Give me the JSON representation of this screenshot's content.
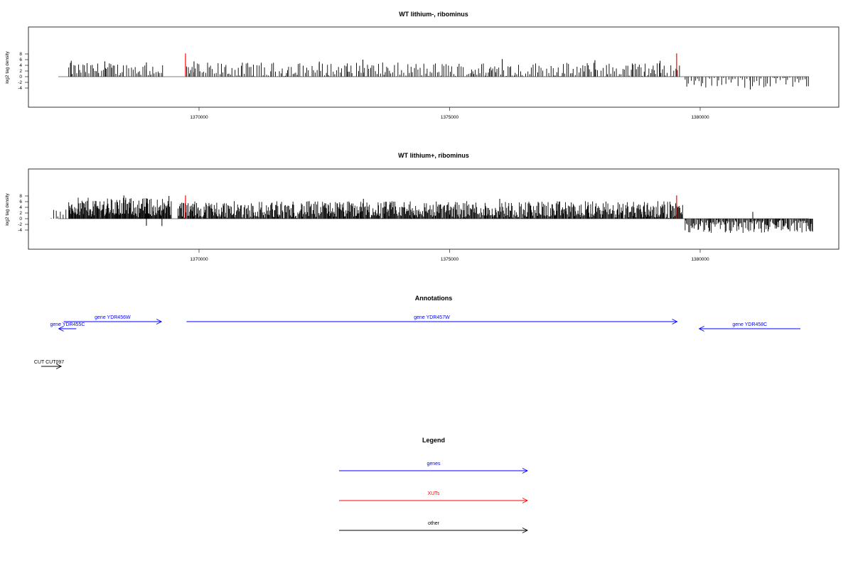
{
  "colors": {
    "genes": "#0000ff",
    "xuts": "#ff0000",
    "other": "#000000",
    "signal": "#000000"
  },
  "chart_data": [
    {
      "type": "bar",
      "title": "WT lithium-, ribominus",
      "ylabel": "log2 tag density",
      "xlim": [
        1366800,
        1382800
      ],
      "ylim": [
        -5,
        9
      ],
      "x_ticks": [
        1370000,
        1375000,
        1380000
      ],
      "y_ticks": [
        8,
        6,
        4,
        2,
        0,
        -2,
        -4
      ],
      "grid": false,
      "markers": [
        {
          "type": "XUT",
          "x": 1369730,
          "value": 8.2
        },
        {
          "type": "XUT",
          "x": 1379530,
          "value": 8.2
        }
      ],
      "segments": [
        {
          "from": 1367400,
          "to": 1369300,
          "mean": 2.5,
          "range": 2.4,
          "sign": 1,
          "step": 30
        },
        {
          "from": 1369750,
          "to": 1379600,
          "mean": 2.4,
          "range": 2.6,
          "sign": 1,
          "step": 32
        },
        {
          "from": 1379700,
          "to": 1382200,
          "mean": 2.2,
          "range": 1.8,
          "sign": -1,
          "step": 45
        }
      ],
      "peaks": [
        {
          "x": 1367450,
          "value": 5.6
        },
        {
          "x": 1368120,
          "value": 5.4
        },
        {
          "x": 1368950,
          "value": 5.0
        },
        {
          "x": 1369900,
          "value": 5.4
        },
        {
          "x": 1372400,
          "value": 5.3
        },
        {
          "x": 1373270,
          "value": 6.0
        },
        {
          "x": 1376050,
          "value": 6.2
        },
        {
          "x": 1377900,
          "value": 5.8
        },
        {
          "x": 1379200,
          "value": 5.6
        },
        {
          "x": 1381000,
          "value": -4.5
        }
      ]
    },
    {
      "type": "bar",
      "title": "WT lithium+, ribominus",
      "ylabel": "log2 tag density",
      "xlim": [
        1366800,
        1382800
      ],
      "ylim": [
        -5,
        9
      ],
      "x_ticks": [
        1370000,
        1375000,
        1380000
      ],
      "y_ticks": [
        8,
        6,
        4,
        2,
        0,
        -2,
        -4
      ],
      "grid": false,
      "markers": [
        {
          "type": "XUT",
          "x": 1369730,
          "value": 8.2
        },
        {
          "type": "XUT",
          "x": 1379530,
          "value": 8.2
        }
      ],
      "segments": [
        {
          "from": 1367050,
          "to": 1367350,
          "mean": 1.8,
          "range": 1.5,
          "sign": 1,
          "step": 40
        },
        {
          "from": 1367400,
          "to": 1369450,
          "mean": 4.2,
          "range": 3.2,
          "sign": 1,
          "step": 12
        },
        {
          "from": 1369580,
          "to": 1379650,
          "mean": 3.2,
          "range": 3.0,
          "sign": 1,
          "step": 14
        },
        {
          "from": 1379700,
          "to": 1382250,
          "mean": 2.8,
          "range": 2.2,
          "sign": -1,
          "step": 18
        }
      ],
      "peaks": [
        {
          "x": 1368500,
          "value": 8.2
        },
        {
          "x": 1369400,
          "value": 8.0
        },
        {
          "x": 1368950,
          "value": -2.5
        },
        {
          "x": 1369260,
          "value": -2.6
        },
        {
          "x": 1373280,
          "value": 7.0
        },
        {
          "x": 1376000,
          "value": 7.0
        },
        {
          "x": 1380500,
          "value": -4.8
        },
        {
          "x": 1381050,
          "value": 2.4
        },
        {
          "x": 1382200,
          "value": -4.5
        }
      ]
    }
  ],
  "annotations": {
    "title": "Annotations",
    "xlim": [
      1366800,
      1382800
    ],
    "features": [
      {
        "label": "gene YDR455C",
        "type": "genes",
        "start": 1367550,
        "end": 1367200,
        "row": 2
      },
      {
        "label": "gene YDR456W",
        "type": "genes",
        "start": 1367300,
        "end": 1369250,
        "row": 1
      },
      {
        "label": "gene YDR457W",
        "type": "genes",
        "start": 1369750,
        "end": 1379540,
        "row": 1
      },
      {
        "label": "gene YDR458C",
        "type": "genes",
        "start": 1382000,
        "end": 1379980,
        "row": 2
      },
      {
        "label": "CUT CUT097",
        "type": "other",
        "start": 1366850,
        "end": 1367250,
        "row": 3
      }
    ]
  },
  "legend": {
    "title": "Legend",
    "items": [
      {
        "label": "genes",
        "type": "genes"
      },
      {
        "label": "XUTs",
        "type": "xuts"
      },
      {
        "label": "other",
        "type": "other"
      }
    ]
  }
}
